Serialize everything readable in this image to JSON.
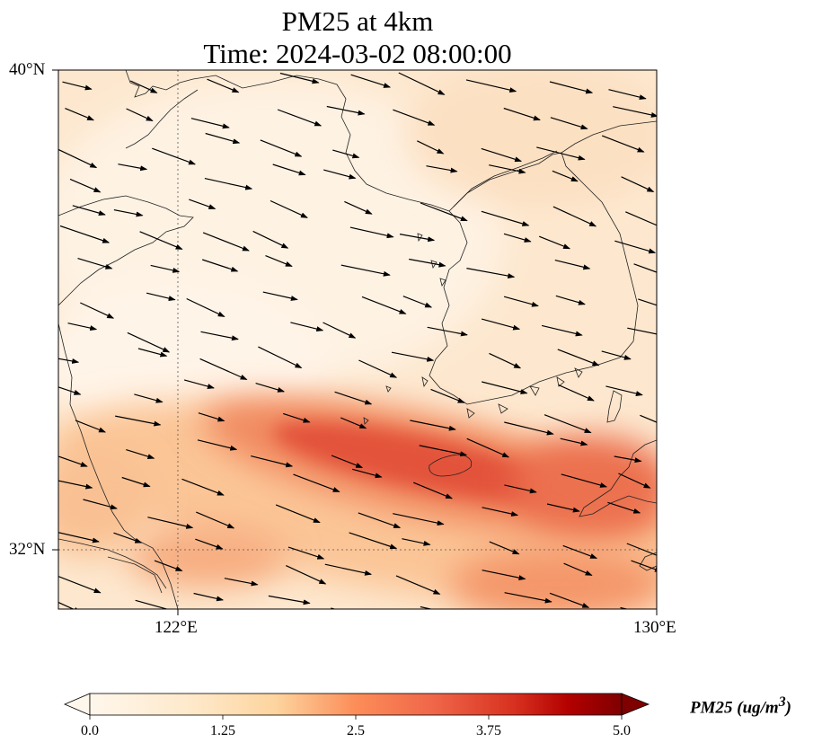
{
  "title": {
    "line1": "PM25 at 4km",
    "line2": "Time: 2024-03-02 08:00:00"
  },
  "axes": {
    "lat_labels": [
      "40°N",
      "32°N"
    ],
    "lon_labels": [
      "122°E",
      "130°E"
    ],
    "lat_range": [
      31,
      40
    ],
    "lon_range": [
      120,
      130
    ],
    "gridlines": "dotted at 32°N and 122°E"
  },
  "colorbar": {
    "label": "PM25 (ug/m",
    "label_sup": "3",
    "label_end": ")",
    "ticks": [
      "0.0",
      "1.25",
      "2.5",
      "3.75",
      "5.0"
    ],
    "min": 0,
    "max": 5,
    "colormap": "OrRd",
    "extend": "both"
  },
  "map": {
    "variable": "PM25",
    "level": "4km",
    "background_color": "#fde9d0",
    "features": [
      "coastlines",
      "wind vectors"
    ],
    "plume_axis": "WNW-ESE band of elevated PM25 across the southern sea, peaking near Jeju Island"
  }
}
